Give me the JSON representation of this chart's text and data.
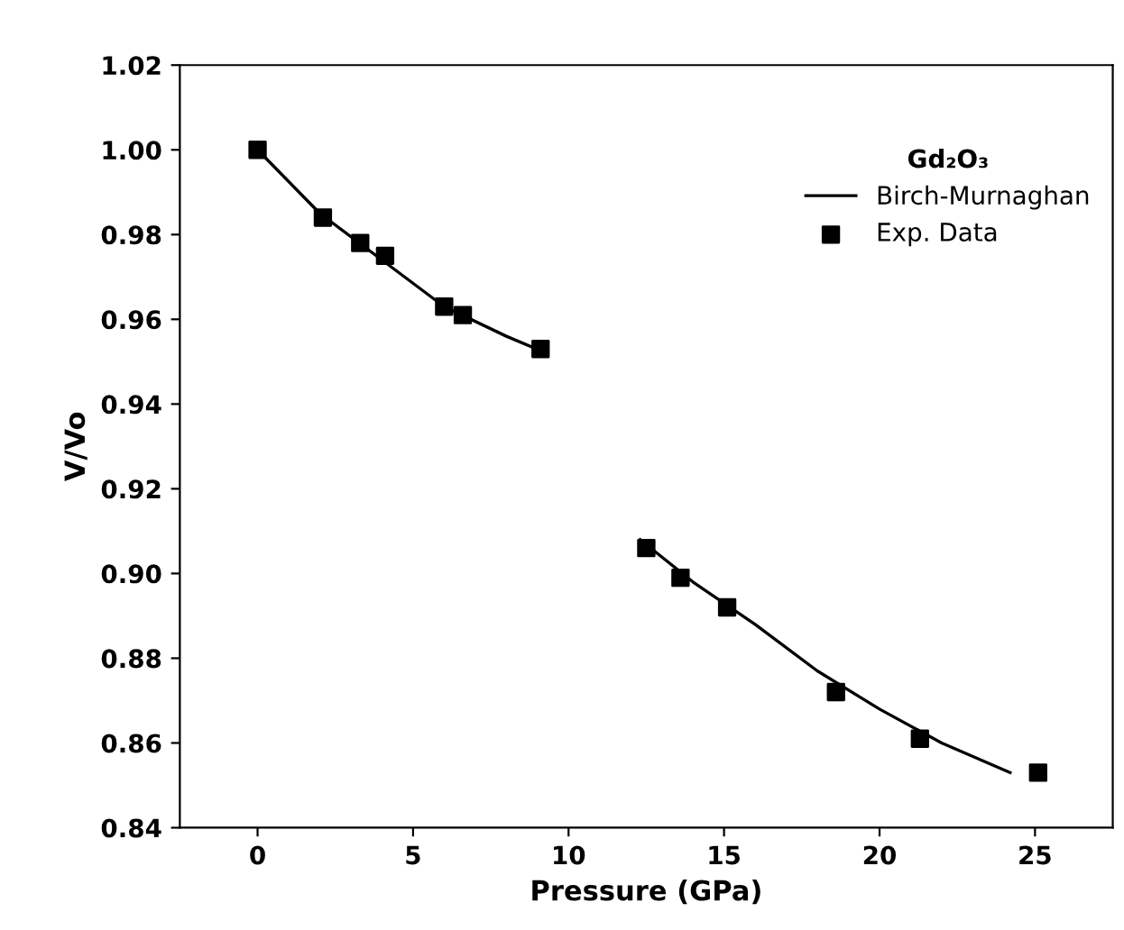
{
  "chart_data": {
    "type": "scatter",
    "xlabel": "Pressure (GPa)",
    "ylabel": "V/Vo",
    "legend_title": "Gd₂O₃",
    "legend": "top right",
    "grid": false,
    "xlim": [
      -2.5,
      27.5
    ],
    "xticks": [
      0,
      5,
      10,
      15,
      20,
      25
    ],
    "ylim": [
      0.84,
      1.02
    ],
    "yticks": [
      {
        "value": 0.84,
        "label": "0.84"
      },
      {
        "value": 0.86,
        "label": "0.86"
      },
      {
        "value": 0.88,
        "label": "0.88"
      },
      {
        "value": 0.9,
        "label": "0.90"
      },
      {
        "value": 0.92,
        "label": "0.92"
      },
      {
        "value": 0.94,
        "label": "0.94"
      },
      {
        "value": 0.96,
        "label": "0.96"
      },
      {
        "value": 0.98,
        "label": "0.98"
      },
      {
        "value": 1.0,
        "label": "1.00"
      },
      {
        "value": 1.02,
        "label": "1.02"
      }
    ],
    "series": [
      {
        "name": "Birch-Murnaghan",
        "type": "line",
        "color": "#000000",
        "marker": "none",
        "line_style": "solid",
        "x": [
          0,
          2,
          4,
          6,
          8,
          9.3,
          10.8,
          12.3,
          14,
          16,
          18,
          20,
          22,
          24.2
        ],
        "values": [
          1.0,
          0.985,
          0.974,
          0.963,
          0.956,
          0.952,
          null,
          0.908,
          0.898,
          0.888,
          0.877,
          0.868,
          0.86,
          0.853
        ]
      },
      {
        "name": "Exp. Data",
        "color": "#000000",
        "marker": "square",
        "x": [
          0,
          2.1,
          3.3,
          4.1,
          6.0,
          6.6,
          9.1,
          12.5,
          13.6,
          15.1,
          18.6,
          21.3,
          25.1
        ],
        "values": [
          1.0,
          0.984,
          0.978,
          0.975,
          0.963,
          0.961,
          0.953,
          0.906,
          0.899,
          0.892,
          0.872,
          0.861,
          0.853
        ]
      }
    ]
  }
}
